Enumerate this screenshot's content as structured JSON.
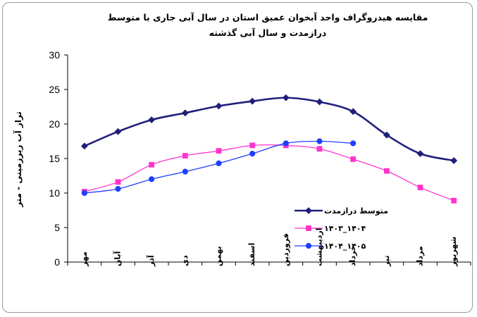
{
  "chart_data": {
    "type": "line",
    "title": "مقایسه هیدروگراف واحد آبخوان عمیق استان در سال آبی جاری با متوسط درازمدت و سال آبی گذشته",
    "xlabel": "",
    "ylabel": "تراز آب زیرزمینی - متر",
    "ylim": [
      0,
      30
    ],
    "yticks": [
      0,
      5,
      10,
      15,
      20,
      25,
      30
    ],
    "grid": false,
    "legend_position": "right",
    "categories": [
      "مهر",
      "آبان",
      "آذر",
      "دی",
      "بهمن",
      "اسفند",
      "فروردین",
      "اردیبهشت",
      "خرداد",
      "تیر",
      "مرداد",
      "شهریور"
    ],
    "series": [
      {
        "name": "متوسط درازمدت",
        "color": "#1f1f7a",
        "marker": "diamond",
        "values": [
          16.8,
          18.9,
          20.6,
          21.6,
          22.6,
          23.3,
          23.8,
          23.2,
          21.8,
          18.4,
          15.7,
          14.7
        ]
      },
      {
        "name": "۱۴۰۳_۱۴۰۴",
        "color": "#ff33cc",
        "marker": "square",
        "values": [
          10.2,
          11.6,
          14.1,
          15.4,
          16.1,
          16.9,
          16.9,
          16.4,
          14.9,
          13.2,
          10.8,
          8.9
        ]
      },
      {
        "name": "۱۴۰۴_۱۴۰۵",
        "color": "#1f3fff",
        "marker": "circle",
        "values": [
          10.0,
          10.6,
          12.0,
          13.1,
          14.3,
          15.7,
          17.2,
          17.5,
          17.2,
          null,
          null,
          null
        ]
      }
    ]
  }
}
